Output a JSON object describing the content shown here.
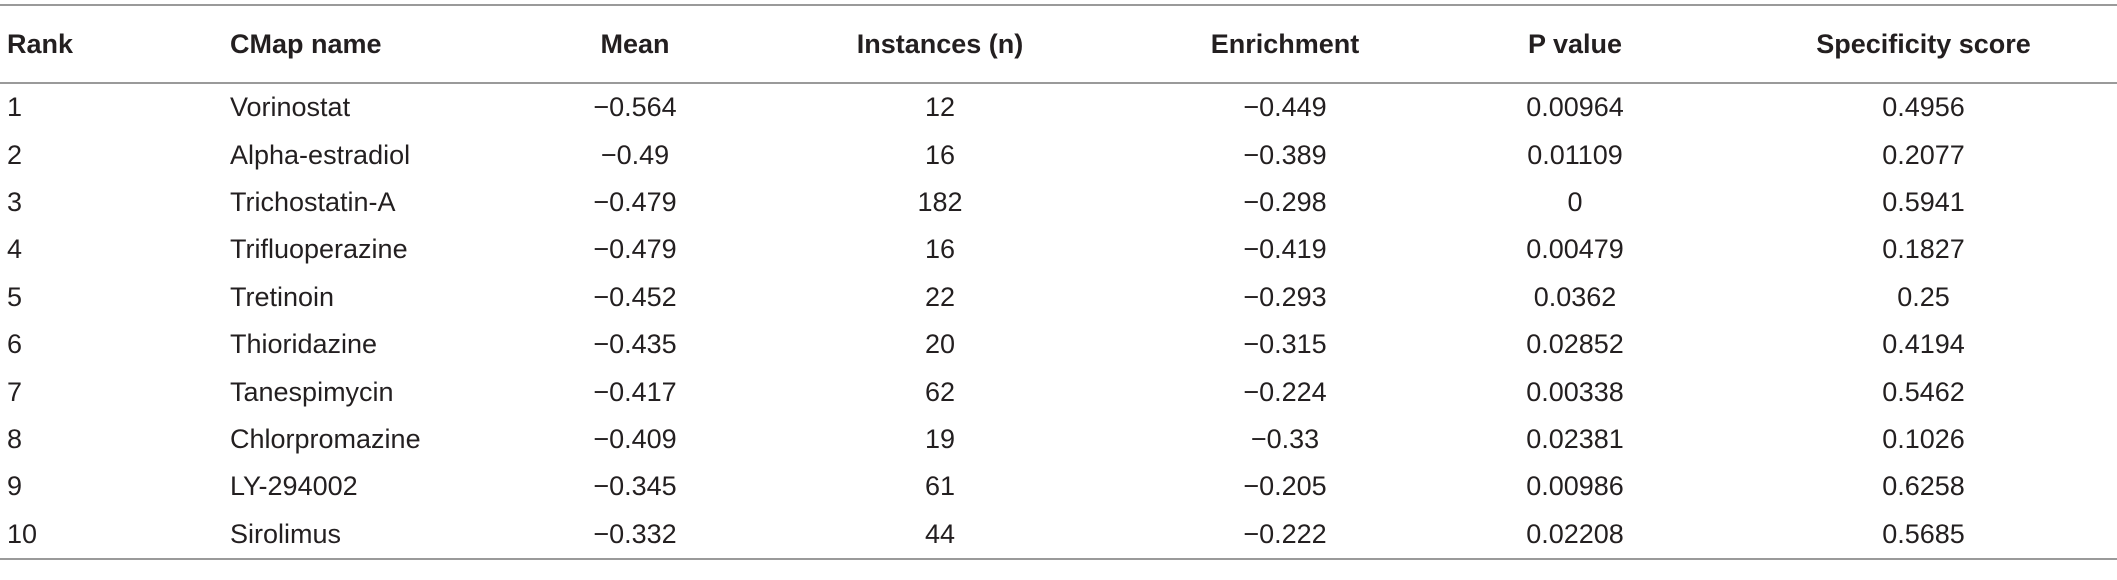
{
  "table": {
    "headers": [
      "Rank",
      "CMap name",
      "Mean",
      "Instances (n)",
      "Enrichment",
      "P value",
      "Specificity score"
    ],
    "rows": [
      [
        "1",
        "Vorinostat",
        "−0.564",
        "12",
        "−0.449",
        "0.00964",
        "0.4956"
      ],
      [
        "2",
        "Alpha-estradiol",
        "−0.49",
        "16",
        "−0.389",
        "0.01109",
        "0.2077"
      ],
      [
        "3",
        "Trichostatin-A",
        "−0.479",
        "182",
        "−0.298",
        "0",
        "0.5941"
      ],
      [
        "4",
        "Trifluoperazine",
        "−0.479",
        "16",
        "−0.419",
        "0.00479",
        "0.1827"
      ],
      [
        "5",
        "Tretinoin",
        "−0.452",
        "22",
        "−0.293",
        "0.0362",
        "0.25"
      ],
      [
        "6",
        "Thioridazine",
        "−0.435",
        "20",
        "−0.315",
        "0.02852",
        "0.4194"
      ],
      [
        "7",
        "Tanespimycin",
        "−0.417",
        "62",
        "−0.224",
        "0.00338",
        "0.5462"
      ],
      [
        "8",
        "Chlorpromazine",
        "−0.409",
        "19",
        "−0.33",
        "0.02381",
        "0.1026"
      ],
      [
        "9",
        "LY-294002",
        "−0.345",
        "61",
        "−0.205",
        "0.00986",
        "0.6258"
      ],
      [
        "10",
        "Sirolimus",
        "−0.332",
        "44",
        "−0.222",
        "0.02208",
        "0.5685"
      ]
    ]
  }
}
